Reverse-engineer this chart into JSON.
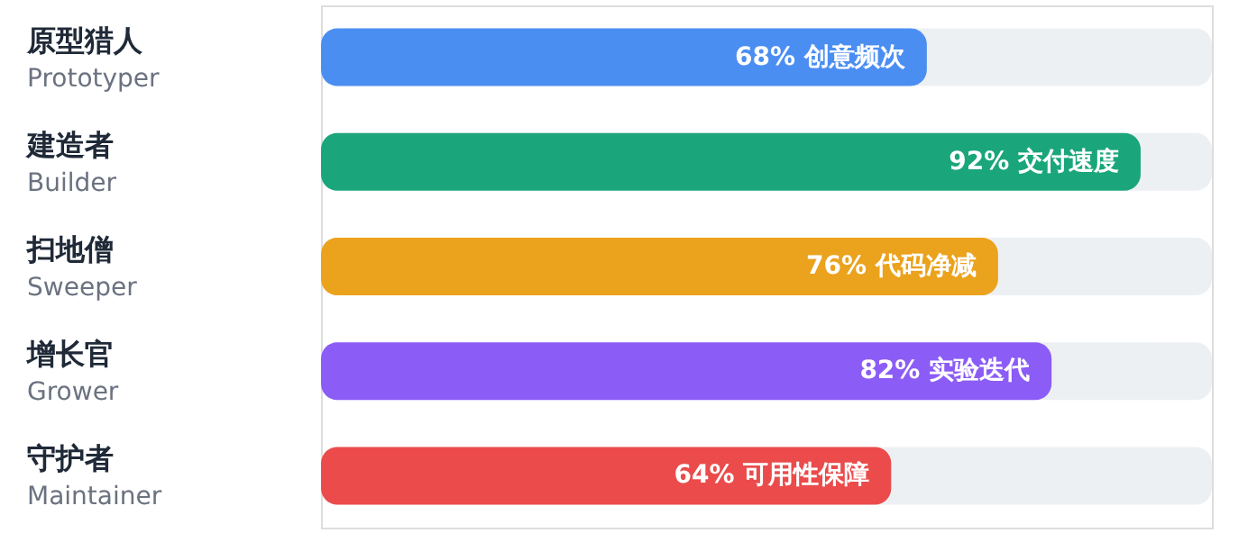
{
  "chart_data": {
    "type": "bar",
    "orientation": "horizontal",
    "categories": [
      "原型猎人\nPrototyper",
      "建造者\nBuilder",
      "扫地僧\nSweeper",
      "增长官\nGrower",
      "守护者\nMaintainer"
    ],
    "values": [
      68,
      92,
      76,
      82,
      64
    ],
    "value_labels": [
      "68% 创意频次",
      "92% 交付速度",
      "76% 代码净减",
      "82% 实验迭代",
      "64% 可用性保障"
    ],
    "colors": [
      "#4b8ef2",
      "#1aa67a",
      "#eba21c",
      "#8b5cf6",
      "#eb4b4b"
    ],
    "xlim": [
      0,
      100
    ]
  }
}
